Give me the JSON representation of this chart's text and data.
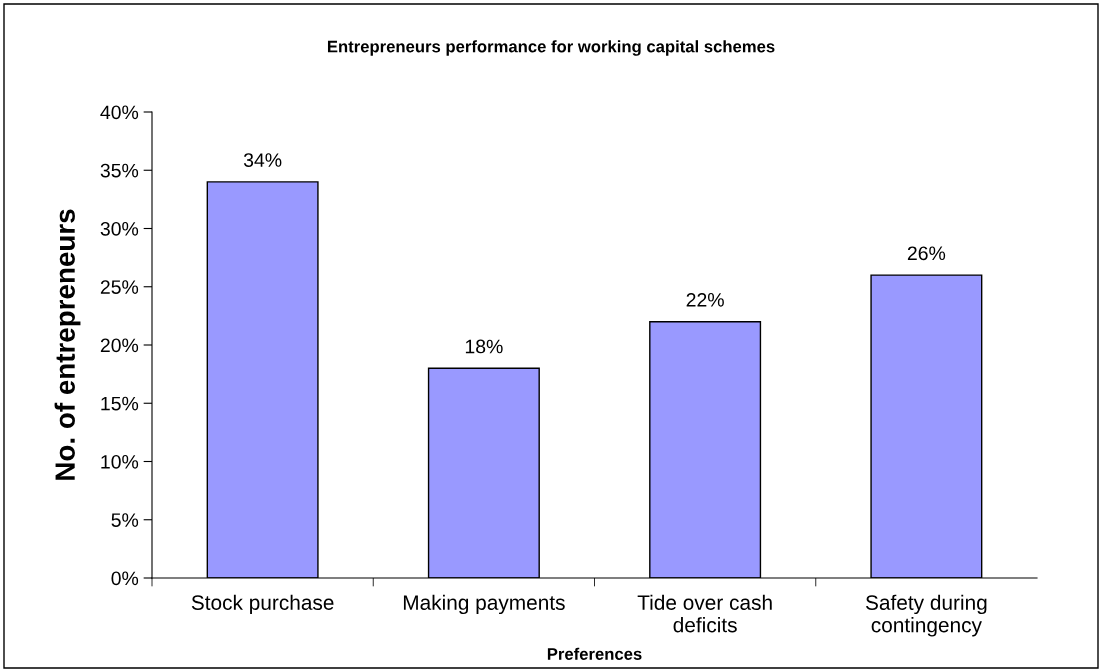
{
  "chart_data": {
    "type": "bar",
    "title": "Entrepreneurs performance for working capital schemes",
    "xlabel": "Preferences",
    "ylabel": "No. of entrepreneurs",
    "categories": [
      "Stock purchase",
      "Making payments",
      "Tide over cash\ndeficits",
      "Safety during\ncontingency"
    ],
    "values": [
      34,
      18,
      22,
      26
    ],
    "value_labels": [
      "34%",
      "18%",
      "22%",
      "26%"
    ],
    "color": "#9999ff",
    "ylim": [
      0,
      40
    ],
    "yticks": [
      {
        "value": 0,
        "label": "0%"
      },
      {
        "value": 5,
        "label": "5%"
      },
      {
        "value": 10,
        "label": "10%"
      },
      {
        "value": 15,
        "label": "15%"
      },
      {
        "value": 20,
        "label": "20%"
      },
      {
        "value": 25,
        "label": "25%"
      },
      {
        "value": 30,
        "label": "30%"
      },
      {
        "value": 35,
        "label": "35%"
      },
      {
        "value": 40,
        "label": "40%"
      }
    ],
    "grid": false
  }
}
